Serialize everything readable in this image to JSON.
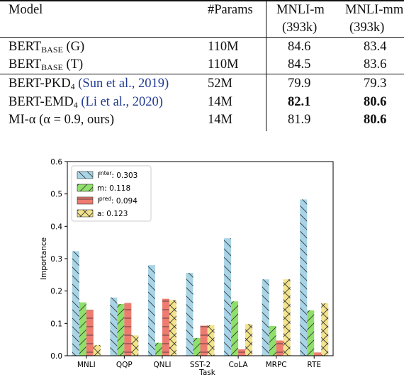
{
  "table": {
    "headers": {
      "model": "Model",
      "params": "#Params",
      "mnli_m": "MNLI-m",
      "mnli_m_sub": "(393k)",
      "mnli_mm": "MNLI-mm",
      "mnli_mm_sub": "(393k)"
    },
    "rows": [
      {
        "name": "BERT",
        "name_sub": "BASE",
        "name_suffix": " (G)",
        "cite": "",
        "params": "110M",
        "m": "84.6",
        "mm": "83.4"
      },
      {
        "name": "BERT",
        "name_sub": "BASE",
        "name_suffix": " (T)",
        "cite": "",
        "params": "110M",
        "m": "84.5",
        "mm": "83.6"
      },
      {
        "name": "BERT-PKD",
        "name_sub": "4",
        "name_suffix": " ",
        "cite": "(Sun et al., 2019)",
        "params": "52M",
        "m": "79.9",
        "mm": "79.3"
      },
      {
        "name": "BERT-EMD",
        "name_sub": "4",
        "name_suffix": " ",
        "cite": "(Li et al., 2020)",
        "params": "14M",
        "m": "82.1",
        "mm": "80.6"
      },
      {
        "name": "MI-α (α = 0.9, ours)",
        "name_sub": "",
        "name_suffix": "",
        "cite": "",
        "params": "14M",
        "m": "81.9",
        "mm": "80.6"
      }
    ]
  },
  "chart_data": {
    "type": "bar",
    "xlabel": "Task",
    "ylabel": "Importance",
    "ylim": [
      0,
      0.6
    ],
    "yticks": [
      "0.0",
      "0.1",
      "0.2",
      "0.3",
      "0.4",
      "0.5",
      "0.6"
    ],
    "legend_position": "top-left",
    "categories": [
      "MNLI",
      "QQP",
      "QNLI",
      "SST-2",
      "CoLA",
      "MRPC",
      "RTE"
    ],
    "series": [
      {
        "name": "l^inter: 0.303",
        "color": "#a8d4e6",
        "hatch": "\\",
        "values": [
          0.323,
          0.18,
          0.28,
          0.256,
          0.363,
          0.236,
          0.483
        ]
      },
      {
        "name": "m: 0.118",
        "color": "#8fe06a",
        "hatch": "/",
        "values": [
          0.165,
          0.16,
          0.04,
          0.055,
          0.168,
          0.092,
          0.14
        ]
      },
      {
        "name": "l^pred: 0.094",
        "color": "#ee7b70",
        "hatch": "-",
        "values": [
          0.142,
          0.163,
          0.176,
          0.093,
          0.02,
          0.047,
          0.01
        ]
      },
      {
        "name": "a: 0.123",
        "color": "#f3e38c",
        "hatch": "x",
        "values": [
          0.033,
          0.063,
          0.172,
          0.094,
          0.098,
          0.236,
          0.162
        ]
      }
    ]
  }
}
